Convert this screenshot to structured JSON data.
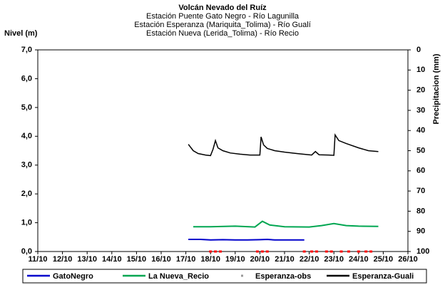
{
  "chart_data": {
    "type": "line",
    "title": "Volcán Nevado del Ruíz",
    "subtitle": [
      "Estación Puente Gato Negro - Río Lagunilla",
      "Estación Esperanza (Mariquita_Tolima) - Río Gualí",
      "Estación Nueva (Lerida_Tolima) - Río Recio"
    ],
    "y_label": "Nivel (m)",
    "y2_label": "Precipitacion (mm)",
    "xlim": [
      11,
      26
    ],
    "xticks": [
      {
        "value": 11,
        "label": "11/10"
      },
      {
        "value": 12,
        "label": "12/10"
      },
      {
        "value": 13,
        "label": "13/10"
      },
      {
        "value": 14,
        "label": "14/10"
      },
      {
        "value": 15,
        "label": "15/10"
      },
      {
        "value": 16,
        "label": "16/10"
      },
      {
        "value": 17,
        "label": "17/10"
      },
      {
        "value": 18,
        "label": "18/10"
      },
      {
        "value": 19,
        "label": "19/10"
      },
      {
        "value": 20,
        "label": "20/10"
      },
      {
        "value": 21,
        "label": "21/10"
      },
      {
        "value": 22,
        "label": "22/10"
      },
      {
        "value": 23,
        "label": "23/10"
      },
      {
        "value": 24,
        "label": "24/10"
      },
      {
        "value": 25,
        "label": "25/10"
      },
      {
        "value": 26,
        "label": "26/10"
      }
    ],
    "ylim": [
      0,
      7
    ],
    "yticks": [
      {
        "value": 0,
        "label": "0,0"
      },
      {
        "value": 1,
        "label": "1,0"
      },
      {
        "value": 2,
        "label": "2,0"
      },
      {
        "value": 3,
        "label": "3,0"
      },
      {
        "value": 4,
        "label": "4,0"
      },
      {
        "value": 5,
        "label": "5,0"
      },
      {
        "value": 6,
        "label": "6,0"
      },
      {
        "value": 7,
        "label": "7,0"
      }
    ],
    "y2lim": [
      0,
      100
    ],
    "y2_inverted": true,
    "y2ticks": [
      0,
      10,
      20,
      30,
      40,
      50,
      60,
      70,
      80,
      90,
      100
    ],
    "legend": "bottom",
    "series": [
      {
        "name": "GatoNegro",
        "color": "#0000cc",
        "style": "line",
        "x": [
          17.1,
          17.6,
          18.0,
          18.5,
          19.0,
          19.5,
          20.0,
          20.3,
          20.6,
          21.0,
          21.8
        ],
        "values": [
          0.42,
          0.42,
          0.4,
          0.41,
          0.4,
          0.4,
          0.41,
          0.42,
          0.4,
          0.4,
          0.4
        ]
      },
      {
        "name": "La Nueva_Recio",
        "color": "#00a651",
        "style": "line",
        "x": [
          17.3,
          18.0,
          19.0,
          19.8,
          20.1,
          20.4,
          21.0,
          22.0,
          22.5,
          23.0,
          23.5,
          24.0,
          24.8
        ],
        "values": [
          0.86,
          0.86,
          0.88,
          0.85,
          1.05,
          0.92,
          0.86,
          0.85,
          0.9,
          0.97,
          0.9,
          0.88,
          0.87
        ]
      },
      {
        "name": "Esperanza-obs",
        "color": "#999999",
        "marker_color": "#ff0000",
        "style": "markers",
        "x": [
          18.0,
          18.2,
          18.4,
          19.9,
          20.1,
          20.3,
          21.8,
          22.1,
          22.3,
          22.7,
          22.9,
          23.3,
          23.6,
          24.0,
          24.3,
          24.5
        ],
        "values": [
          0,
          0,
          0,
          0,
          0,
          0,
          0,
          0,
          0,
          0,
          0,
          0,
          0,
          0,
          0,
          0
        ]
      },
      {
        "name": "Esperanza-Guali",
        "color": "#000000",
        "style": "line",
        "x": [
          17.1,
          17.3,
          17.5,
          17.8,
          18.0,
          18.1,
          18.2,
          18.3,
          18.5,
          18.8,
          19.2,
          19.6,
          20.0,
          20.05,
          20.15,
          20.3,
          20.6,
          21.0,
          21.5,
          22.0,
          22.1,
          22.25,
          22.4,
          22.8,
          23.0,
          23.05,
          23.2,
          23.5,
          24.0,
          24.4,
          24.8
        ],
        "values": [
          3.72,
          3.5,
          3.4,
          3.35,
          3.33,
          3.55,
          3.85,
          3.6,
          3.5,
          3.42,
          3.38,
          3.35,
          3.35,
          3.98,
          3.7,
          3.58,
          3.5,
          3.45,
          3.4,
          3.36,
          3.35,
          3.47,
          3.36,
          3.35,
          3.34,
          4.05,
          3.85,
          3.75,
          3.6,
          3.5,
          3.47
        ]
      }
    ]
  }
}
